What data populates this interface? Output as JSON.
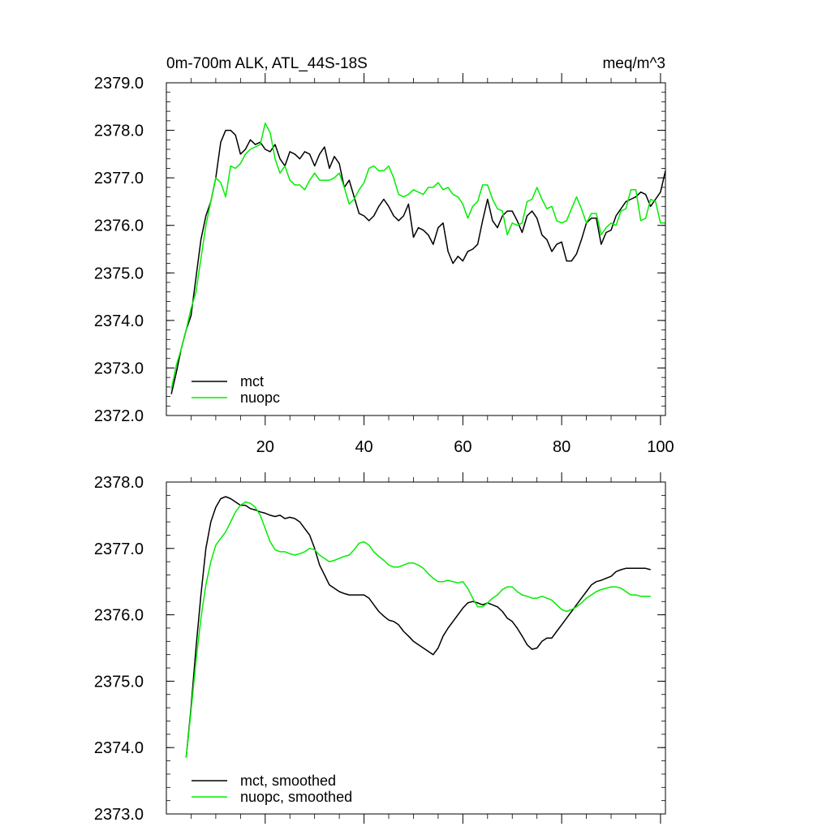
{
  "chart_data": [
    {
      "type": "line",
      "title_left": "0m-700m ALK, ATL_44S-18S",
      "title_right": "meq/m^3",
      "xlim": [
        0,
        101
      ],
      "ylim": [
        2372.0,
        2379.0
      ],
      "x_ticks": [
        20,
        40,
        60,
        80,
        100
      ],
      "x_tick_labels": [
        "20",
        "40",
        "60",
        "80",
        "100"
      ],
      "y_ticks": [
        2372.0,
        2373.0,
        2374.0,
        2375.0,
        2376.0,
        2377.0,
        2378.0,
        2379.0
      ],
      "y_tick_labels": [
        "2372.0",
        "2373.0",
        "2374.0",
        "2375.0",
        "2376.0",
        "2377.0",
        "2378.0",
        "2379.0"
      ],
      "legend_position": "bottom-left",
      "x": [
        1,
        2,
        3,
        4,
        5,
        6,
        7,
        8,
        9,
        10,
        11,
        12,
        13,
        14,
        15,
        16,
        17,
        18,
        19,
        20,
        21,
        22,
        23,
        24,
        25,
        26,
        27,
        28,
        29,
        30,
        31,
        32,
        33,
        34,
        35,
        36,
        37,
        38,
        39,
        40,
        41,
        42,
        43,
        44,
        45,
        46,
        47,
        48,
        49,
        50,
        51,
        52,
        53,
        54,
        55,
        56,
        57,
        58,
        59,
        60,
        61,
        62,
        63,
        64,
        65,
        66,
        67,
        68,
        69,
        70,
        71,
        72,
        73,
        74,
        75,
        76,
        77,
        78,
        79,
        80,
        81,
        82,
        83,
        84,
        85,
        86,
        87,
        88,
        89,
        90,
        91,
        92,
        93,
        94,
        95,
        96,
        97,
        98,
        99,
        100,
        101
      ],
      "series": [
        {
          "name": "mct",
          "color": "#000000",
          "values": [
            2372.45,
            2372.9,
            2373.4,
            2373.8,
            2374.1,
            2374.9,
            2375.7,
            2376.2,
            2376.5,
            2377.0,
            2377.75,
            2378.0,
            2378.0,
            2377.9,
            2377.5,
            2377.6,
            2377.8,
            2377.7,
            2377.75,
            2377.6,
            2377.55,
            2377.7,
            2377.4,
            2377.25,
            2377.55,
            2377.5,
            2377.4,
            2377.55,
            2377.5,
            2377.25,
            2377.5,
            2377.65,
            2377.2,
            2377.45,
            2377.3,
            2376.8,
            2376.95,
            2376.6,
            2376.25,
            2376.2,
            2376.1,
            2376.2,
            2376.4,
            2376.55,
            2376.4,
            2376.2,
            2376.1,
            2376.2,
            2376.45,
            2375.75,
            2375.95,
            2375.9,
            2375.8,
            2375.6,
            2375.95,
            2376.05,
            2375.45,
            2375.2,
            2375.35,
            2375.25,
            2375.45,
            2375.5,
            2375.6,
            2376.1,
            2376.55,
            2376.1,
            2375.95,
            2376.2,
            2376.3,
            2376.3,
            2376.1,
            2375.85,
            2376.2,
            2376.3,
            2376.15,
            2375.8,
            2375.7,
            2375.45,
            2375.6,
            2375.65,
            2375.25,
            2375.25,
            2375.4,
            2375.7,
            2376.05,
            2376.15,
            2376.15,
            2375.6,
            2375.85,
            2375.9,
            2376.2,
            2376.35,
            2376.5,
            2376.55,
            2376.6,
            2376.7,
            2376.65,
            2376.4,
            2376.55,
            2376.7,
            2377.15
          ]
        },
        {
          "name": "nuopc",
          "color": "#00ee00",
          "values": [
            2372.55,
            2373.05,
            2373.4,
            2373.8,
            2374.25,
            2374.6,
            2375.3,
            2376.0,
            2376.5,
            2377.0,
            2376.9,
            2376.6,
            2377.25,
            2377.2,
            2377.3,
            2377.5,
            2377.6,
            2377.65,
            2377.7,
            2378.15,
            2377.95,
            2377.4,
            2377.1,
            2377.25,
            2376.95,
            2376.85,
            2376.85,
            2376.75,
            2376.95,
            2377.1,
            2376.95,
            2376.95,
            2376.95,
            2377.0,
            2377.1,
            2376.8,
            2376.45,
            2376.55,
            2376.75,
            2376.9,
            2377.2,
            2377.25,
            2377.15,
            2377.15,
            2377.25,
            2377.0,
            2376.65,
            2376.6,
            2376.65,
            2376.75,
            2376.7,
            2376.65,
            2376.8,
            2376.8,
            2376.9,
            2376.75,
            2376.8,
            2376.65,
            2376.6,
            2376.45,
            2376.15,
            2376.4,
            2376.5,
            2376.85,
            2376.85,
            2376.55,
            2376.35,
            2376.3,
            2375.8,
            2376.05,
            2376.0,
            2376.05,
            2376.5,
            2376.55,
            2376.8,
            2376.55,
            2376.35,
            2376.4,
            2376.1,
            2376.05,
            2376.1,
            2376.35,
            2376.6,
            2376.35,
            2376.05,
            2376.25,
            2376.25,
            2375.8,
            2375.95,
            2376.05,
            2376.0,
            2376.3,
            2376.35,
            2376.75,
            2376.75,
            2376.1,
            2376.15,
            2376.55,
            2376.5,
            2376.05,
            2376.05
          ]
        }
      ]
    },
    {
      "type": "line",
      "xlim": [
        0,
        101
      ],
      "ylim": [
        2373.0,
        2378.0
      ],
      "x_ticks": [
        20,
        40,
        60,
        80,
        100
      ],
      "y_ticks": [
        2373.0,
        2374.0,
        2375.0,
        2376.0,
        2377.0,
        2378.0
      ],
      "y_tick_labels": [
        "2373.0",
        "2374.0",
        "2375.0",
        "2376.0",
        "2377.0",
        "2378.0"
      ],
      "legend_position": "bottom-left",
      "x": [
        4,
        5,
        6,
        7,
        8,
        9,
        10,
        11,
        12,
        13,
        14,
        15,
        16,
        17,
        18,
        19,
        20,
        21,
        22,
        23,
        24,
        25,
        26,
        27,
        28,
        29,
        30,
        31,
        32,
        33,
        34,
        35,
        36,
        37,
        38,
        39,
        40,
        41,
        42,
        43,
        44,
        45,
        46,
        47,
        48,
        49,
        50,
        51,
        52,
        53,
        54,
        55,
        56,
        57,
        58,
        59,
        60,
        61,
        62,
        63,
        64,
        65,
        66,
        67,
        68,
        69,
        70,
        71,
        72,
        73,
        74,
        75,
        76,
        77,
        78,
        79,
        80,
        81,
        82,
        83,
        84,
        85,
        86,
        87,
        88,
        89,
        90,
        91,
        92,
        93,
        94,
        95,
        96,
        97,
        98
      ],
      "series": [
        {
          "name": "mct, smoothed",
          "color": "#000000",
          "values": [
            2373.85,
            2374.6,
            2375.5,
            2376.3,
            2377.0,
            2377.4,
            2377.62,
            2377.75,
            2377.78,
            2377.75,
            2377.7,
            2377.65,
            2377.65,
            2377.6,
            2377.58,
            2377.55,
            2377.53,
            2377.5,
            2377.48,
            2377.5,
            2377.45,
            2377.47,
            2377.45,
            2377.4,
            2377.3,
            2377.2,
            2377.0,
            2376.75,
            2376.6,
            2376.45,
            2376.4,
            2376.35,
            2376.32,
            2376.3,
            2376.3,
            2376.3,
            2376.3,
            2376.25,
            2376.15,
            2376.05,
            2375.98,
            2375.92,
            2375.9,
            2375.85,
            2375.75,
            2375.68,
            2375.6,
            2375.55,
            2375.5,
            2375.45,
            2375.4,
            2375.5,
            2375.68,
            2375.8,
            2375.9,
            2376.0,
            2376.1,
            2376.18,
            2376.2,
            2376.18,
            2376.15,
            2376.18,
            2376.15,
            2376.12,
            2376.05,
            2375.95,
            2375.9,
            2375.8,
            2375.68,
            2375.55,
            2375.48,
            2375.5,
            2375.6,
            2375.65,
            2375.65,
            2375.75,
            2375.85,
            2375.95,
            2376.05,
            2376.15,
            2376.25,
            2376.35,
            2376.45,
            2376.5,
            2376.52,
            2376.55,
            2376.58,
            2376.65,
            2376.68,
            2376.7,
            2376.7,
            2376.7,
            2376.7,
            2376.7,
            2376.68
          ]
        },
        {
          "name": "nuopc, smoothed",
          "color": "#00ee00",
          "values": [
            2373.85,
            2374.55,
            2375.3,
            2375.95,
            2376.45,
            2376.8,
            2377.05,
            2377.15,
            2377.25,
            2377.4,
            2377.55,
            2377.65,
            2377.7,
            2377.68,
            2377.62,
            2377.5,
            2377.3,
            2377.1,
            2376.98,
            2376.95,
            2376.95,
            2376.92,
            2376.9,
            2376.92,
            2376.95,
            2377.0,
            2376.98,
            2376.9,
            2376.85,
            2376.8,
            2376.82,
            2376.85,
            2376.88,
            2376.9,
            2376.98,
            2377.08,
            2377.1,
            2377.05,
            2376.95,
            2376.88,
            2376.82,
            2376.75,
            2376.72,
            2376.72,
            2376.75,
            2376.78,
            2376.78,
            2376.75,
            2376.7,
            2376.62,
            2376.55,
            2376.5,
            2376.5,
            2376.52,
            2376.5,
            2376.48,
            2376.5,
            2376.4,
            2376.25,
            2376.12,
            2376.12,
            2376.18,
            2376.25,
            2376.3,
            2376.38,
            2376.42,
            2376.42,
            2376.35,
            2376.3,
            2376.28,
            2376.25,
            2376.25,
            2376.28,
            2376.25,
            2376.22,
            2376.15,
            2376.08,
            2376.05,
            2376.08,
            2376.12,
            2376.18,
            2376.25,
            2376.3,
            2376.35,
            2376.38,
            2376.4,
            2376.42,
            2376.42,
            2376.4,
            2376.35,
            2376.3,
            2376.3,
            2376.28,
            2376.28,
            2376.28
          ]
        }
      ]
    }
  ]
}
